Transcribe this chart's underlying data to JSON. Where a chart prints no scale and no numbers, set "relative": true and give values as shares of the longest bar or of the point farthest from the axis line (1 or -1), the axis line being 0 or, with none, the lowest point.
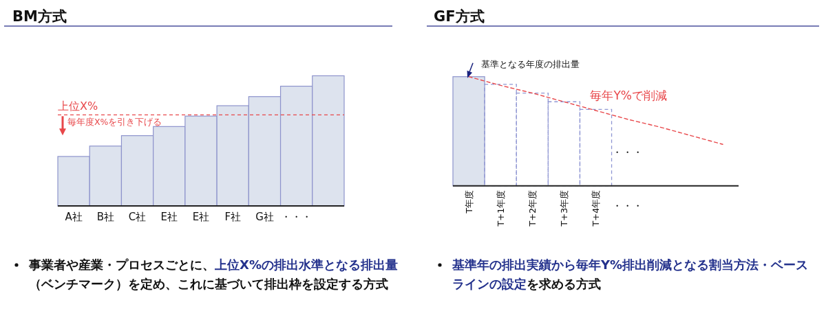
{
  "chart_data": [
    {
      "type": "bar",
      "title": "BM方式",
      "categories": [
        "A社",
        "B社",
        "C社",
        "E社",
        "E社",
        "F社",
        "G社",
        "・・・",
        null
      ],
      "values": [
        0.38,
        0.46,
        0.54,
        0.61,
        0.69,
        0.77,
        0.84,
        0.92,
        1
      ],
      "color": "#dde3ee",
      "relative": true,
      "ref_lines": [
        {
          "axis": "y",
          "value": 0.7,
          "label": "上位X%",
          "color": "#e8474a",
          "line_style": "dashed"
        }
      ],
      "annotations": [
        "毎年度X%を引き下げる",
        "事業者や産業・プロセスごとに、",
        "上位X%の排出水準となる排出量",
        "（ベンチマーク）を定め、これに基づいて排出枠を設定する方式"
      ]
    },
    {
      "type": "bar",
      "title": "GF方式",
      "categories": [
        "T年度",
        "T+1年度",
        "T+2年度",
        "T+3年度",
        "T+4年度",
        "・・・",
        null,
        null,
        null
      ],
      "relative": true,
      "series": [
        {
          "color": "#dde3ee",
          "values": [
            1,
            null,
            null,
            null,
            null,
            null,
            null,
            null,
            null
          ]
        },
        {
          "color": "#8f96d3",
          "line_style": "dashed",
          "values": [
            null,
            0.93,
            0.85,
            0.77,
            0.7,
            null,
            null,
            null,
            null
          ]
        },
        {
          "type": "line",
          "name": "毎年Y%で削減",
          "color": "#e8474a",
          "line_style": "dashed",
          "values": [
            1,
            0.92,
            0.85,
            0.77,
            0.69,
            0.61,
            0.54,
            0.46,
            0.38
          ]
        }
      ],
      "annotations": [
        {
          "text": "基準となる年度の排出量",
          "x": "T年度",
          "y": 1
        },
        "・・・",
        "基準年の排出実績から毎年Y%排出削減となる割当方法・ベース",
        "ラインの設定",
        "を求める方式"
      ]
    }
  ]
}
